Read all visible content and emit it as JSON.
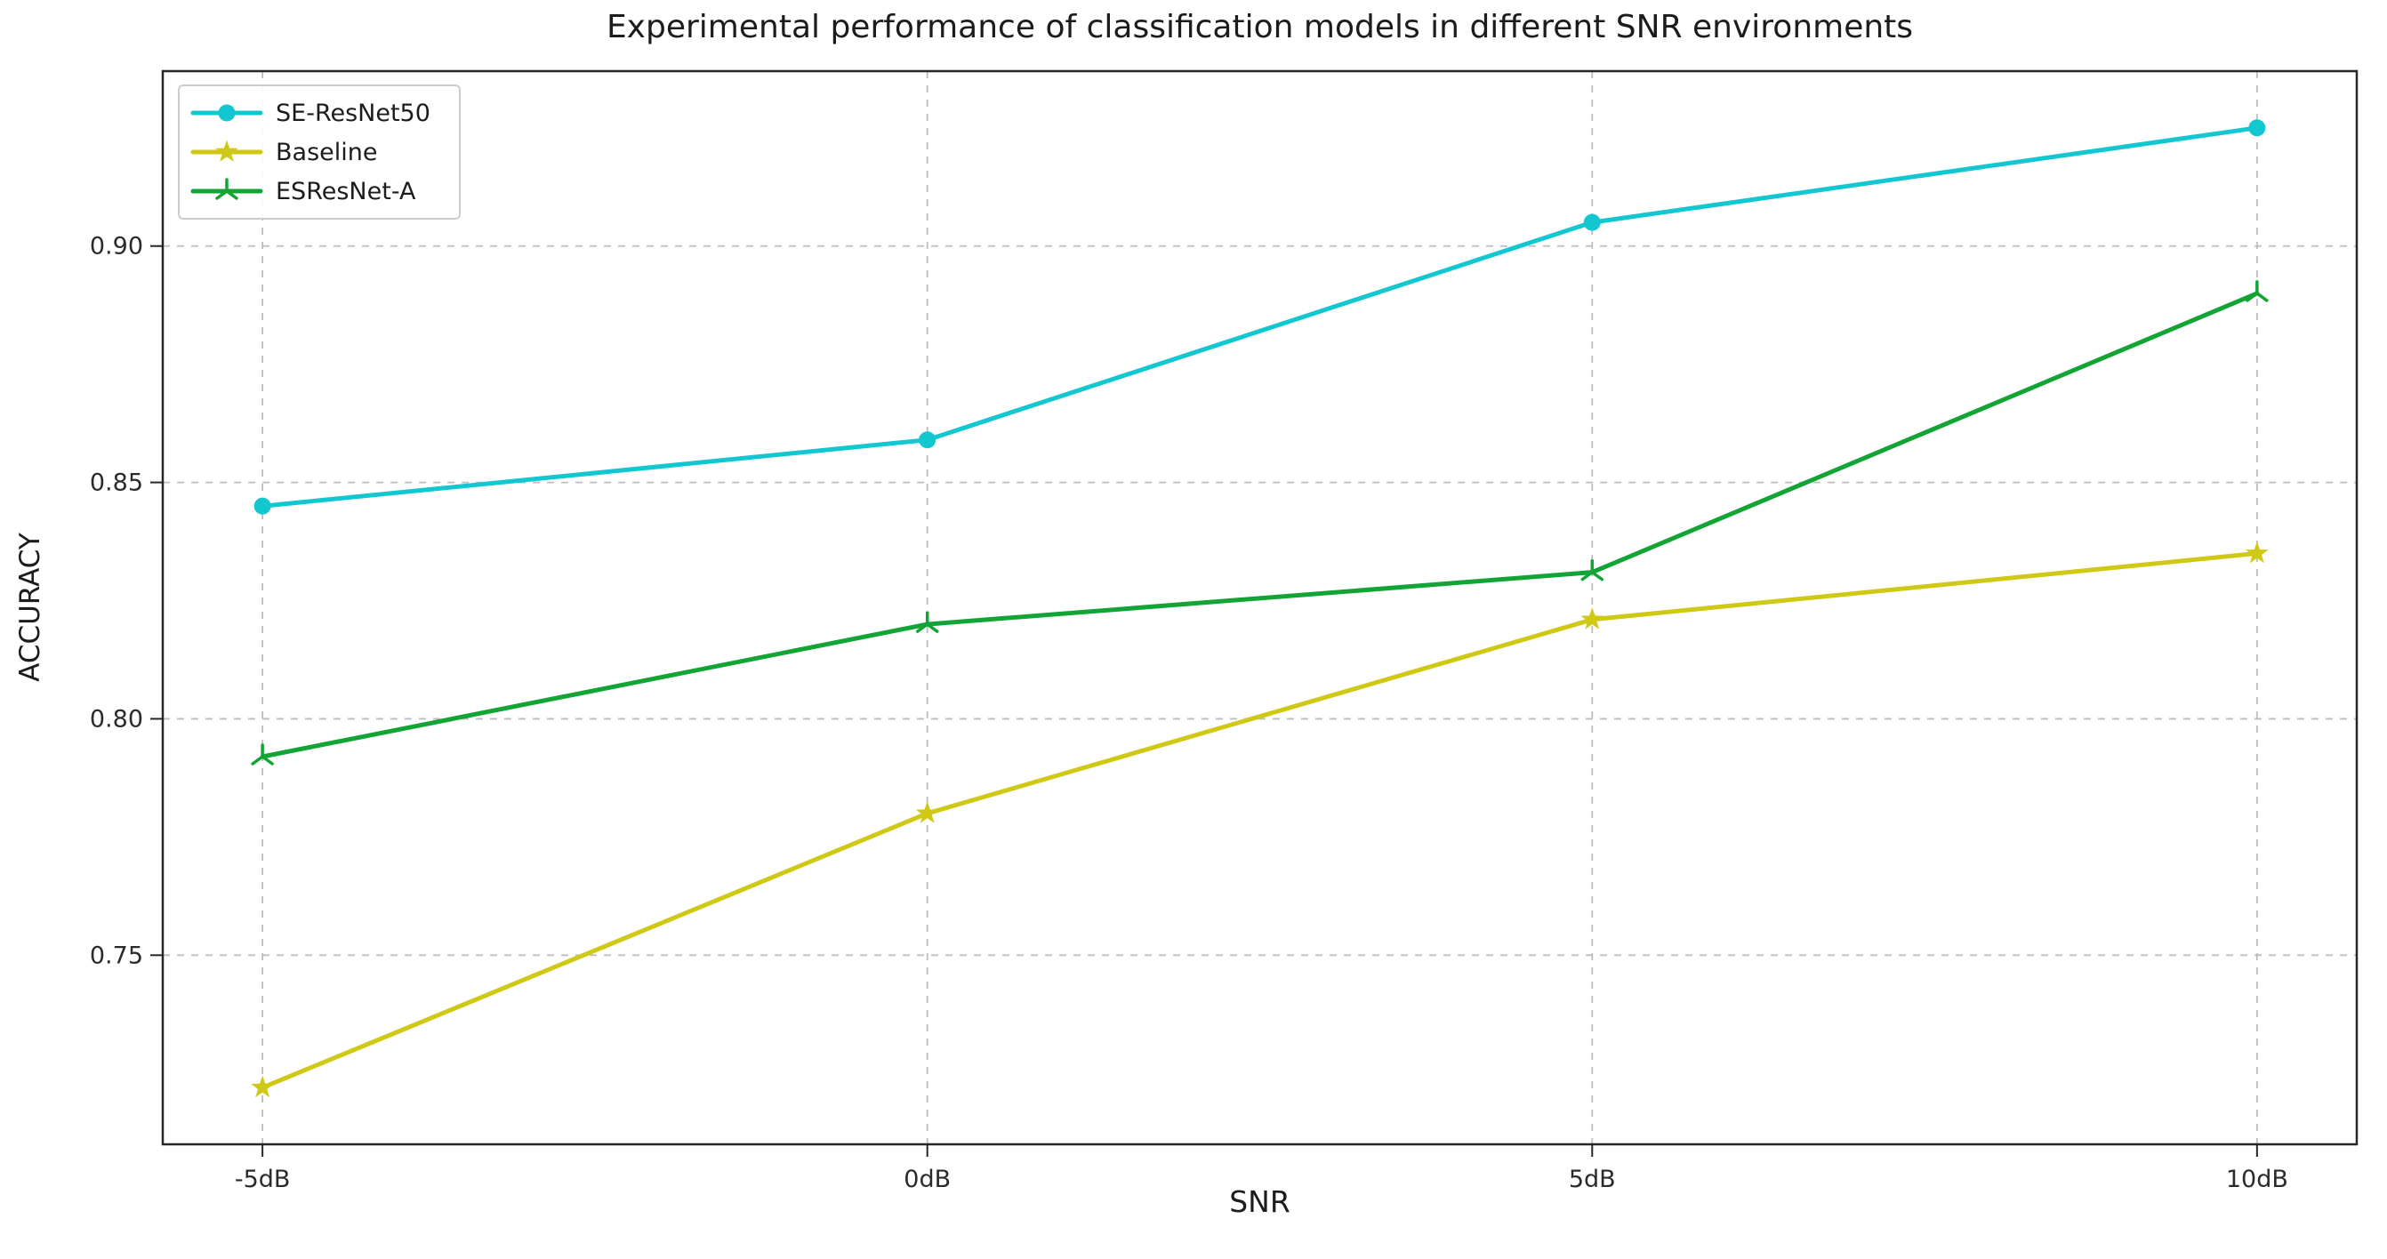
{
  "figure": {
    "background": "#ffffff"
  },
  "chart_data": {
    "type": "line",
    "title": "Experimental performance of classification models in different SNR environments",
    "xlabel": "SNR",
    "ylabel": "ACCURACY",
    "categories": [
      "-5dB",
      "0dB",
      "5dB",
      "10dB"
    ],
    "series": [
      {
        "name": "SE-ResNet50",
        "color": "#12c7d0",
        "marker": "circle-icon",
        "values": [
          0.845,
          0.859,
          0.905,
          0.925
        ]
      },
      {
        "name": "Baseline",
        "color": "#cfc916",
        "marker": "star-icon",
        "values": [
          0.722,
          0.78,
          0.821,
          0.835
        ]
      },
      {
        "name": "ESResNet-A",
        "color": "#12a435",
        "marker": "tri-down-icon",
        "values": [
          0.792,
          0.82,
          0.831,
          0.89
        ]
      }
    ],
    "yticks": [
      0.75,
      0.8,
      0.85,
      0.9
    ],
    "ylim": [
      0.71,
      0.937
    ],
    "grid": true,
    "grid_style": "dashed",
    "legend_position": "upper left"
  }
}
